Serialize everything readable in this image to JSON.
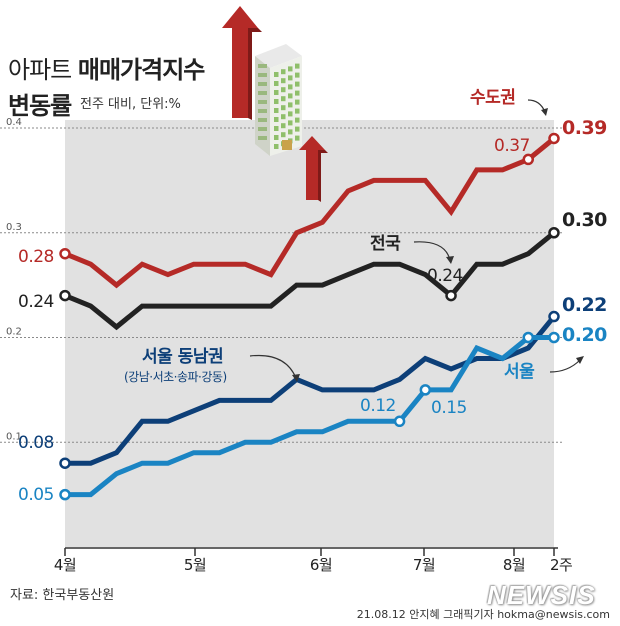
{
  "title": {
    "line1_a": "아파트",
    "line1_b": "매매가격지수",
    "line2": "변동률",
    "unit": "전주 대비, 단위:%"
  },
  "source": "자료: 한국부동산원",
  "credit": "21.08.12 안지혜 그래픽기자  hokma@newsis.com",
  "logo": "NEWSIS",
  "colors": {
    "capital": "#b52a27",
    "national": "#222222",
    "seoul_southeast": "#0d3f78",
    "seoul": "#1a84c3",
    "area_fill": "#e1e1e1"
  },
  "chart_data": {
    "type": "line",
    "title": "아파트 매매가격지수 변동률",
    "unit": "전주 대비, 단위:%",
    "x_labels": [
      "4월",
      "5월",
      "6월",
      "7월",
      "8월",
      "2주"
    ],
    "y_ticks": [
      "0.1",
      "0.2",
      "0.3",
      "0.4"
    ],
    "ylim": [
      0,
      0.4
    ],
    "weeks": 20,
    "series": [
      {
        "name": "수도권",
        "values": [
          0.28,
          0.27,
          0.25,
          0.27,
          0.26,
          0.27,
          0.27,
          0.27,
          0.26,
          0.3,
          0.31,
          0.34,
          0.35,
          0.35,
          0.35,
          0.32,
          0.36,
          0.36,
          0.37,
          0.39
        ],
        "start_label": "0.28",
        "end_label": "0.39",
        "mid_label": "0.37"
      },
      {
        "name": "전국",
        "values": [
          0.24,
          0.23,
          0.21,
          0.23,
          0.23,
          0.23,
          0.23,
          0.23,
          0.23,
          0.25,
          0.25,
          0.26,
          0.27,
          0.27,
          0.26,
          0.24,
          0.27,
          0.27,
          0.28,
          0.3
        ],
        "start_label": "0.24",
        "end_label": "0.30",
        "mid_label": "0.24"
      },
      {
        "name": "서울 동남권",
        "subname": "(강남·서초·송파·강동)",
        "values": [
          0.08,
          0.08,
          0.09,
          0.12,
          0.12,
          0.13,
          0.14,
          0.14,
          0.14,
          0.16,
          0.15,
          0.15,
          0.15,
          0.16,
          0.18,
          0.17,
          0.18,
          0.18,
          0.19,
          0.22
        ],
        "start_label": "0.08",
        "end_label": "0.22"
      },
      {
        "name": "서울",
        "values": [
          0.05,
          0.05,
          0.07,
          0.08,
          0.08,
          0.09,
          0.09,
          0.1,
          0.1,
          0.11,
          0.11,
          0.12,
          0.12,
          0.12,
          0.15,
          0.15,
          0.19,
          0.18,
          0.2,
          0.2
        ],
        "start_label": "0.05",
        "end_label": "0.20",
        "mid_label_a": "0.12",
        "mid_label_b": "0.15"
      }
    ]
  }
}
